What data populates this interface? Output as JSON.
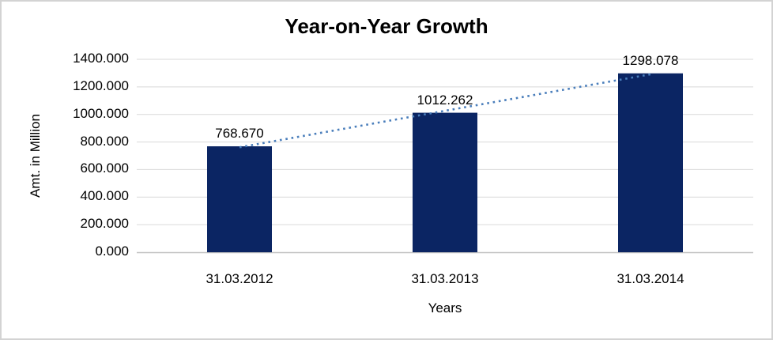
{
  "frame": {
    "background": "#FFFFFF",
    "border_color": "#D3D3D3"
  },
  "chart_data": {
    "type": "bar",
    "title": "Year-on-Year Growth",
    "xlabel": "Years",
    "ylabel": "Amt. in Million",
    "categories": [
      "31.03.2012",
      "31.03.2013",
      "31.03.2014"
    ],
    "values": [
      768.67,
      1012.262,
      1298.078
    ],
    "data_labels": [
      "768.670",
      "1012.262",
      "1298.078"
    ],
    "y_ticks": [
      {
        "value": 0,
        "label": "0.000"
      },
      {
        "value": 200,
        "label": "200.000"
      },
      {
        "value": 400,
        "label": "400.000"
      },
      {
        "value": 600,
        "label": "600.000"
      },
      {
        "value": 800,
        "label": "800.000"
      },
      {
        "value": 1000,
        "label": "1000.000"
      },
      {
        "value": 1200,
        "label": "1200.000"
      },
      {
        "value": 1400,
        "label": "1400.000"
      }
    ],
    "ylim": [
      0,
      1400
    ],
    "grid": true,
    "legend": false,
    "trendline": {
      "type": "linear",
      "style": "dotted",
      "color": "#4A7EBB"
    },
    "colors": {
      "bar": "#0B2563",
      "gridline": "#D9D9D9",
      "axis_line": "#C0C0C0",
      "text": "#000000"
    }
  }
}
